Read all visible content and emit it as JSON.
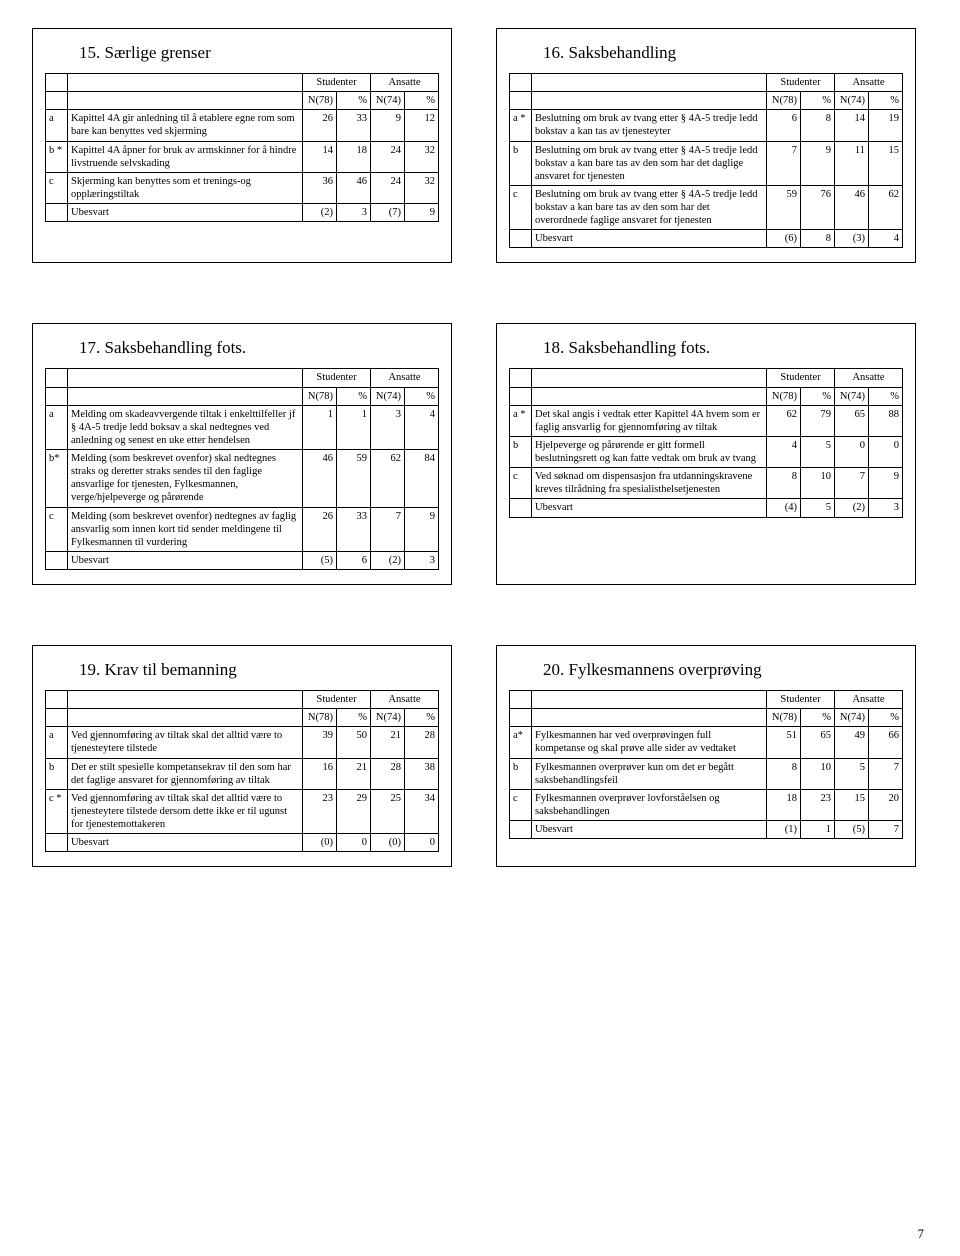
{
  "page_number": "7",
  "header_labels": {
    "studenter": "Studenter",
    "ansatte": "Ansatte",
    "n78": "N(78)",
    "n74": "N(74)",
    "pct": "%"
  },
  "panels": [
    {
      "title": "15. Særlige grenser",
      "rows": [
        {
          "id": "a",
          "desc": "Kapittel 4A gir anledning til å etablere egne rom som bare kan benyttes ved skjerming",
          "v": [
            "26",
            "33",
            "9",
            "12"
          ]
        },
        {
          "id": "b *",
          "desc": "Kapittel 4A åpner for bruk av armskinner for å hindre livstruende selvskading",
          "v": [
            "14",
            "18",
            "24",
            "32"
          ]
        },
        {
          "id": "c",
          "desc": "Skjerming kan benyttes som et trenings-og opplæringstiltak",
          "v": [
            "36",
            "46",
            "24",
            "32"
          ]
        },
        {
          "id": "",
          "desc": "Ubesvart",
          "v": [
            "(2)",
            "3",
            "(7)",
            "9"
          ]
        }
      ]
    },
    {
      "title": "16. Saksbehandling",
      "rows": [
        {
          "id": "a *",
          "desc": "Beslutning om bruk av tvang etter § 4A-5 tredje ledd bokstav a kan tas av tjenesteyter",
          "v": [
            "6",
            "8",
            "14",
            "19"
          ]
        },
        {
          "id": "b",
          "desc": "Beslutning om bruk av tvang etter § 4A-5 tredje ledd bokstav a kan bare tas av den som har det daglige ansvaret for tjenesten",
          "v": [
            "7",
            "9",
            "11",
            "15"
          ]
        },
        {
          "id": "c",
          "desc": "Beslutning om bruk av tvang etter § 4A-5 tredje ledd bokstav a kan bare tas av den som har det overordnede faglige ansvaret for tjenesten",
          "v": [
            "59",
            "76",
            "46",
            "62"
          ]
        },
        {
          "id": "",
          "desc": "Ubesvart",
          "v": [
            "(6)",
            "8",
            "(3)",
            "4"
          ]
        }
      ]
    },
    {
      "title": "17. Saksbehandling fots.",
      "rows": [
        {
          "id": "a",
          "desc": "Melding om skadeavvergende tiltak i enkelttilfeller jf § 4A-5 tredje ledd boksav a skal nedtegnes ved anledning og senest en uke etter hendelsen",
          "v": [
            "1",
            "1",
            "3",
            "4"
          ]
        },
        {
          "id": "b*",
          "desc": "Melding (som beskrevet ovenfor) skal nedtegnes straks og deretter straks sendes til den faglige ansvarlige for tjenesten, Fylkesmannen, verge/hjelpeverge og pårørende",
          "v": [
            "46",
            "59",
            "62",
            "84"
          ]
        },
        {
          "id": "c",
          "desc": "Melding (som beskrevet ovenfor) nedtegnes av faglig ansvarlig som innen kort tid sender meldingene til Fylkesmannen til vurdering",
          "v": [
            "26",
            "33",
            "7",
            "9"
          ]
        },
        {
          "id": "",
          "desc": "Ubesvart",
          "v": [
            "(5)",
            "6",
            "(2)",
            "3"
          ]
        }
      ]
    },
    {
      "title": "18. Saksbehandling fots.",
      "rows": [
        {
          "id": "a *",
          "desc": "Det skal angis i vedtak etter Kapittel 4A hvem som er faglig ansvarlig for gjennomføring av tiltak",
          "v": [
            "62",
            "79",
            "65",
            "88"
          ]
        },
        {
          "id": "b",
          "desc": "Hjelpeverge og pårørende er gitt formell beslutningsrett og kan fatte vedtak om bruk av tvang",
          "v": [
            "4",
            "5",
            "0",
            "0"
          ]
        },
        {
          "id": "c",
          "desc": "Ved søknad om dispensasjon fra utdanningskravene kreves tilrådning fra spesialisthelsetjenesten",
          "v": [
            "8",
            "10",
            "7",
            "9"
          ]
        },
        {
          "id": "",
          "desc": "Ubesvart",
          "v": [
            "(4)",
            "5",
            "(2)",
            "3"
          ]
        }
      ]
    },
    {
      "title": "19. Krav til bemanning",
      "rows": [
        {
          "id": "a",
          "desc": "Ved gjennomføring av tiltak skal det alltid være to tjenesteytere tilstede",
          "v": [
            "39",
            "50",
            "21",
            "28"
          ]
        },
        {
          "id": "b",
          "desc": "Det er stilt spesielle kompetansekrav til den som har det faglige ansvaret for gjennomføring av tiltak",
          "v": [
            "16",
            "21",
            "28",
            "38"
          ]
        },
        {
          "id": "c *",
          "desc": "Ved gjennomføring av tiltak skal det alltid være to tjenesteytere tilstede dersom dette ikke er til ugunst for tjenestemottakeren",
          "v": [
            "23",
            "29",
            "25",
            "34"
          ]
        },
        {
          "id": "",
          "desc": "Ubesvart",
          "v": [
            "(0)",
            "0",
            "(0)",
            "0"
          ]
        }
      ]
    },
    {
      "title": "20. Fylkesmannens overprøving",
      "rows": [
        {
          "id": "a*",
          "desc": "Fylkesmannen har ved overprøvingen full kompetanse og skal prøve alle sider av vedtaket",
          "v": [
            "51",
            "65",
            "49",
            "66"
          ]
        },
        {
          "id": "b",
          "desc": "Fylkesmannen overprøver kun om det er begått saksbehandlingsfeil",
          "v": [
            "8",
            "10",
            "5",
            "7"
          ]
        },
        {
          "id": "c",
          "desc": "Fylkesmannen overprøver lovforståelsen og saksbehandlingen",
          "v": [
            "18",
            "23",
            "15",
            "20"
          ]
        },
        {
          "id": "",
          "desc": "Ubesvart",
          "v": [
            "(1)",
            "1",
            "(5)",
            "7"
          ]
        }
      ]
    }
  ]
}
